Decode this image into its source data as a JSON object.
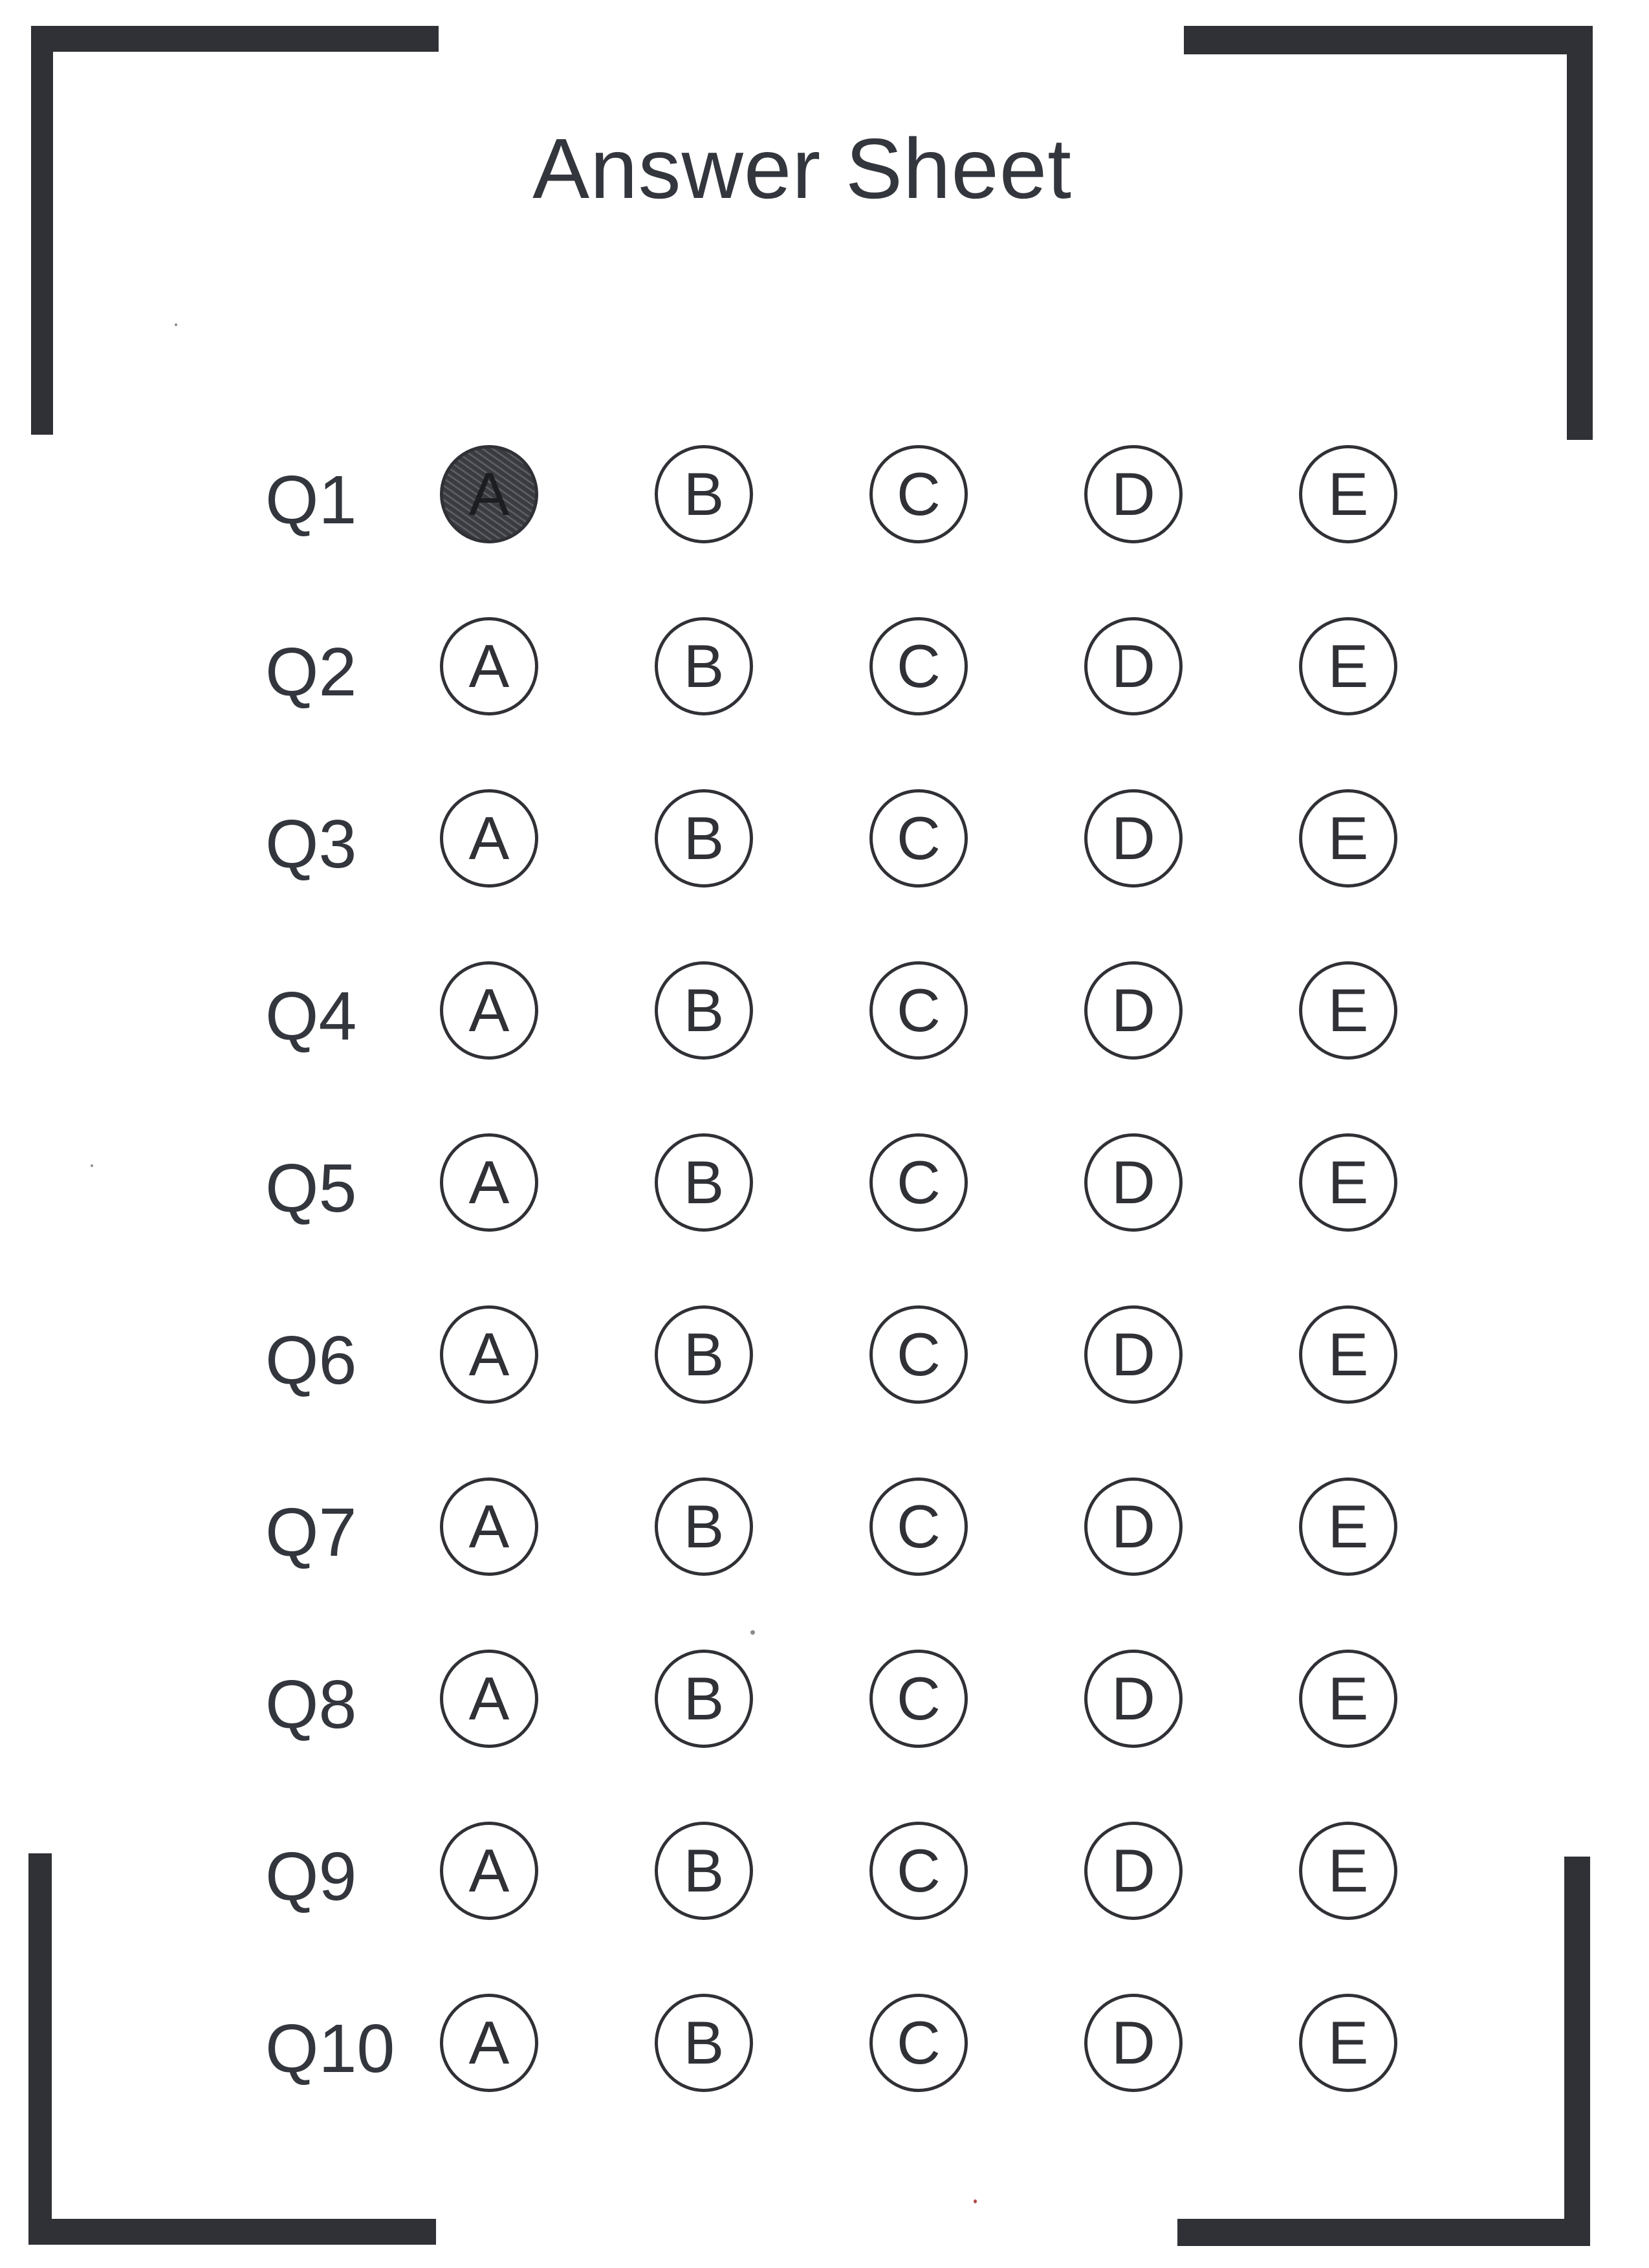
{
  "title": "Answer Sheet",
  "options": [
    "A",
    "B",
    "C",
    "D",
    "E"
  ],
  "questions": [
    {
      "label": "Q1",
      "marked": "A"
    },
    {
      "label": "Q2",
      "marked": null
    },
    {
      "label": "Q3",
      "marked": null
    },
    {
      "label": "Q4",
      "marked": null
    },
    {
      "label": "Q5",
      "marked": null
    },
    {
      "label": "Q6",
      "marked": null
    },
    {
      "label": "Q7",
      "marked": null
    },
    {
      "label": "Q8",
      "marked": null
    },
    {
      "label": "Q9",
      "marked": null
    },
    {
      "label": "Q10",
      "marked": null
    }
  ],
  "colors": {
    "ink": "#2f3136",
    "paper": "#ffffff",
    "fill": "#3a3b40"
  }
}
